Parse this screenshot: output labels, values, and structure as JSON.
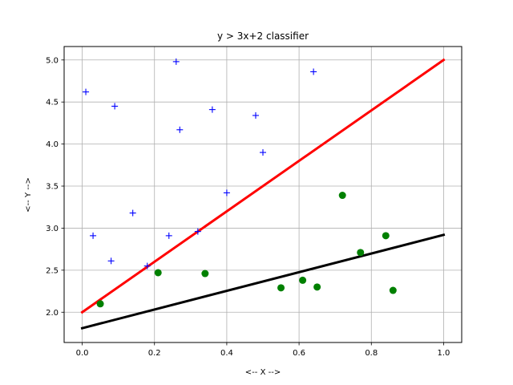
{
  "chart_data": {
    "type": "scatter",
    "title": "y > 3x+2 classifier",
    "xlabel": "<-- X -->",
    "ylabel": "<-- Y -->",
    "xlim": [
      -0.05,
      1.05
    ],
    "ylim": [
      1.64,
      5.16
    ],
    "xticks": [
      0.0,
      0.2,
      0.4,
      0.6,
      0.8,
      1.0
    ],
    "xtick_labels": [
      "0.0",
      "0.2",
      "0.4",
      "0.6",
      "0.8",
      "1.0"
    ],
    "yticks": [
      2.0,
      2.5,
      3.0,
      3.5,
      4.0,
      4.5,
      5.0
    ],
    "ytick_labels": [
      "2.0",
      "2.5",
      "3.0",
      "3.5",
      "4.0",
      "4.5",
      "5.0"
    ],
    "grid": true,
    "series": [
      {
        "marker": "plus",
        "color": "#0000ff",
        "points": [
          [
            0.01,
            4.62
          ],
          [
            0.09,
            4.45
          ],
          [
            0.26,
            4.98
          ],
          [
            0.36,
            4.41
          ],
          [
            0.48,
            4.34
          ],
          [
            0.64,
            4.86
          ],
          [
            0.27,
            4.17
          ],
          [
            0.5,
            3.9
          ],
          [
            0.4,
            3.42
          ],
          [
            0.14,
            3.18
          ],
          [
            0.03,
            2.91
          ],
          [
            0.24,
            2.91
          ],
          [
            0.32,
            2.96
          ],
          [
            0.08,
            2.61
          ],
          [
            0.18,
            2.55
          ]
        ]
      },
      {
        "marker": "circle",
        "color": "#008000",
        "points": [
          [
            0.05,
            2.1
          ],
          [
            0.21,
            2.47
          ],
          [
            0.34,
            2.46
          ],
          [
            0.55,
            2.29
          ],
          [
            0.61,
            2.38
          ],
          [
            0.65,
            2.3
          ],
          [
            0.72,
            3.39
          ],
          [
            0.77,
            2.71
          ],
          [
            0.84,
            2.91
          ],
          [
            0.86,
            2.26
          ]
        ]
      }
    ],
    "lines": [
      {
        "color": "#ff0000",
        "points": [
          [
            0.0,
            2.0
          ],
          [
            1.0,
            5.0
          ]
        ]
      },
      {
        "color": "#000000",
        "points": [
          [
            0.0,
            1.81
          ],
          [
            1.0,
            2.92
          ]
        ]
      }
    ]
  }
}
